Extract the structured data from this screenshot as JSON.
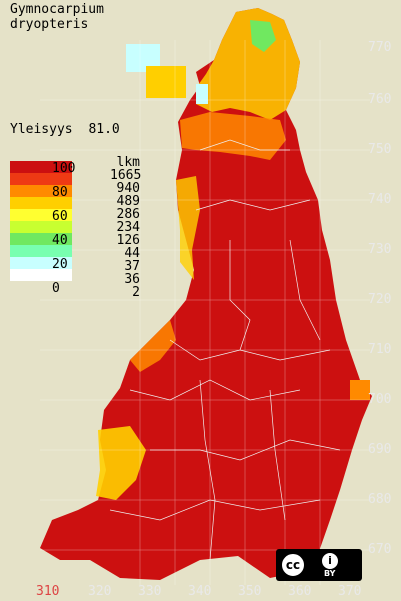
{
  "species": {
    "line1": "Gymnocarpium",
    "line2": "dryopteris"
  },
  "stat": {
    "label": "Yleisyys",
    "value": "81.0"
  },
  "legend": {
    "ticks": [
      "100",
      "80",
      "60",
      "40",
      "20",
      "0"
    ],
    "count_header": "lkm",
    "counts": [
      "1665",
      "940",
      "489",
      "286",
      "234",
      "126",
      "44",
      "37",
      "36",
      "2"
    ],
    "colors": [
      "#cc1010",
      "#ee3a14",
      "#ff8a00",
      "#ffcf00",
      "#ffff30",
      "#c8ff30",
      "#70e860",
      "#78ffb0",
      "#c8ffff",
      "#ffffff"
    ]
  },
  "axis": {
    "y_labels": [
      "770",
      "760",
      "750",
      "740",
      "730",
      "720",
      "710",
      "700",
      "690",
      "680",
      "670"
    ],
    "x_labels": [
      "310",
      "320",
      "330",
      "340",
      "350",
      "360",
      "370"
    ]
  },
  "license": {
    "cc": "cc",
    "by_glyph": "i",
    "by": "BY"
  }
}
